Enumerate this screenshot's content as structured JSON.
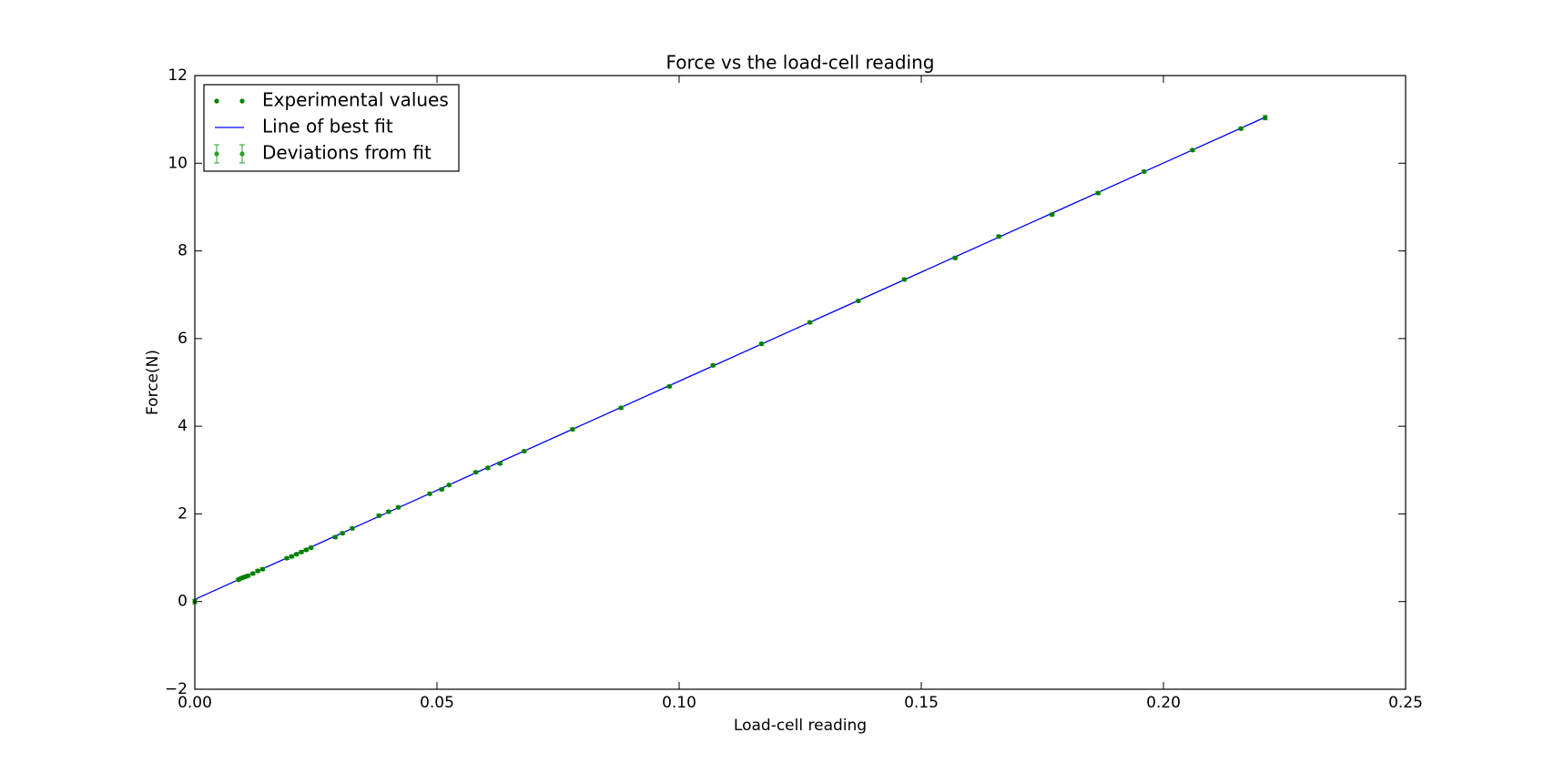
{
  "chart_data": {
    "type": "scatter",
    "title": "Force vs the load-cell reading",
    "x_label": "Load-cell reading",
    "y_label": "Force(N)",
    "xlim": [
      0,
      0.25
    ],
    "ylim": [
      -2,
      12
    ],
    "xticks": [
      {
        "value": 0,
        "label": "0.00"
      },
      {
        "value": 0.05,
        "label": "0.05"
      },
      {
        "value": 0.1,
        "label": "0.10"
      },
      {
        "value": 0.15,
        "label": "0.15"
      },
      {
        "value": 0.2,
        "label": "0.20"
      },
      {
        "value": 0.25,
        "label": "0.25"
      }
    ],
    "yticks": [
      {
        "value": -2,
        "label": "−2"
      },
      0,
      2,
      4,
      6,
      8,
      10,
      12
    ],
    "legend": "upper left",
    "series": [
      {
        "name": "Experimental values",
        "type": "scatter",
        "color": "#007f00",
        "x": [
          0.0,
          0.009,
          0.0095,
          0.01,
          0.0105,
          0.011,
          0.012,
          0.013,
          0.014,
          0.019,
          0.02,
          0.021,
          0.022,
          0.023,
          0.024,
          0.029,
          0.0305,
          0.0325,
          0.038,
          0.04,
          0.042,
          0.0485,
          0.051,
          0.0525,
          0.058,
          0.0605,
          0.063,
          0.068,
          0.078,
          0.088,
          0.098,
          0.107,
          0.117,
          0.127,
          0.137,
          0.1465,
          0.157,
          0.166,
          0.177,
          0.1865,
          0.196,
          0.206,
          0.216,
          0.221
        ],
        "values": [
          0.0,
          0.5,
          0.53,
          0.55,
          0.57,
          0.59,
          0.64,
          0.7,
          0.74,
          0.99,
          1.03,
          1.08,
          1.13,
          1.18,
          1.23,
          1.47,
          1.56,
          1.67,
          1.96,
          2.05,
          2.15,
          2.46,
          2.56,
          2.66,
          2.95,
          3.05,
          3.15,
          3.43,
          3.93,
          4.42,
          4.91,
          5.39,
          5.88,
          6.37,
          6.86,
          7.35,
          7.84,
          8.33,
          8.83,
          9.32,
          9.81,
          10.3,
          10.79,
          11.04
        ]
      },
      {
        "name": "Line of best fit",
        "type": "line",
        "color": "#0000ff",
        "x": [
          0.0,
          0.221
        ],
        "values": [
          0.05,
          11.05
        ]
      },
      {
        "name": "Deviations from fit",
        "type": "errorbar",
        "color": "#2ca02c",
        "x": [
          0.0,
          0.009,
          0.0095,
          0.01,
          0.0105,
          0.011,
          0.012,
          0.013,
          0.014,
          0.019,
          0.02,
          0.021,
          0.022,
          0.023,
          0.024,
          0.029,
          0.0305,
          0.0325,
          0.038,
          0.04,
          0.042,
          0.0485,
          0.051,
          0.0525,
          0.058,
          0.0605,
          0.063,
          0.068,
          0.078,
          0.088,
          0.098,
          0.107,
          0.117,
          0.127,
          0.137,
          0.1465,
          0.157,
          0.166,
          0.177,
          0.1865,
          0.196,
          0.206,
          0.216,
          0.221
        ],
        "values": [
          0.0,
          0.5,
          0.53,
          0.55,
          0.57,
          0.59,
          0.64,
          0.7,
          0.74,
          0.99,
          1.03,
          1.08,
          1.13,
          1.18,
          1.23,
          1.47,
          1.56,
          1.67,
          1.96,
          2.05,
          2.15,
          2.46,
          2.56,
          2.66,
          2.95,
          3.05,
          3.15,
          3.43,
          3.93,
          4.42,
          4.91,
          5.39,
          5.88,
          6.37,
          6.86,
          7.35,
          7.84,
          8.33,
          8.83,
          9.32,
          9.81,
          10.3,
          10.79,
          11.04
        ],
        "errors": [
          0.05,
          0.03,
          0.03,
          0.03,
          0.03,
          0.03,
          0.03,
          0.03,
          0.03,
          0.03,
          0.03,
          0.03,
          0.03,
          0.03,
          0.03,
          0.03,
          0.03,
          0.03,
          0.03,
          0.03,
          0.03,
          0.03,
          0.03,
          0.03,
          0.03,
          0.03,
          0.03,
          0.03,
          0.03,
          0.03,
          0.03,
          0.03,
          0.03,
          0.03,
          0.03,
          0.03,
          0.03,
          0.03,
          0.03,
          0.03,
          0.03,
          0.03,
          0.03,
          0.05
        ]
      }
    ]
  }
}
